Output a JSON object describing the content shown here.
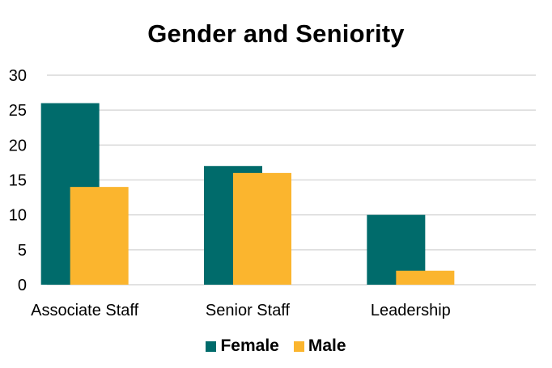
{
  "chart_data": {
    "type": "bar",
    "title": "Gender and Seniority",
    "xlabel": "",
    "ylabel": "",
    "categories": [
      "Associate Staff",
      "Senior Staff",
      "Leadership"
    ],
    "series": [
      {
        "name": "Female",
        "values": [
          26,
          17,
          10
        ],
        "color": "#006b6b"
      },
      {
        "name": "Male",
        "values": [
          14,
          16,
          2
        ],
        "color": "#fbb52e"
      }
    ],
    "ylim": [
      0,
      30
    ],
    "yticks": [
      0,
      5,
      10,
      15,
      20,
      25,
      30
    ],
    "grid": true,
    "legend_position": "bottom"
  }
}
